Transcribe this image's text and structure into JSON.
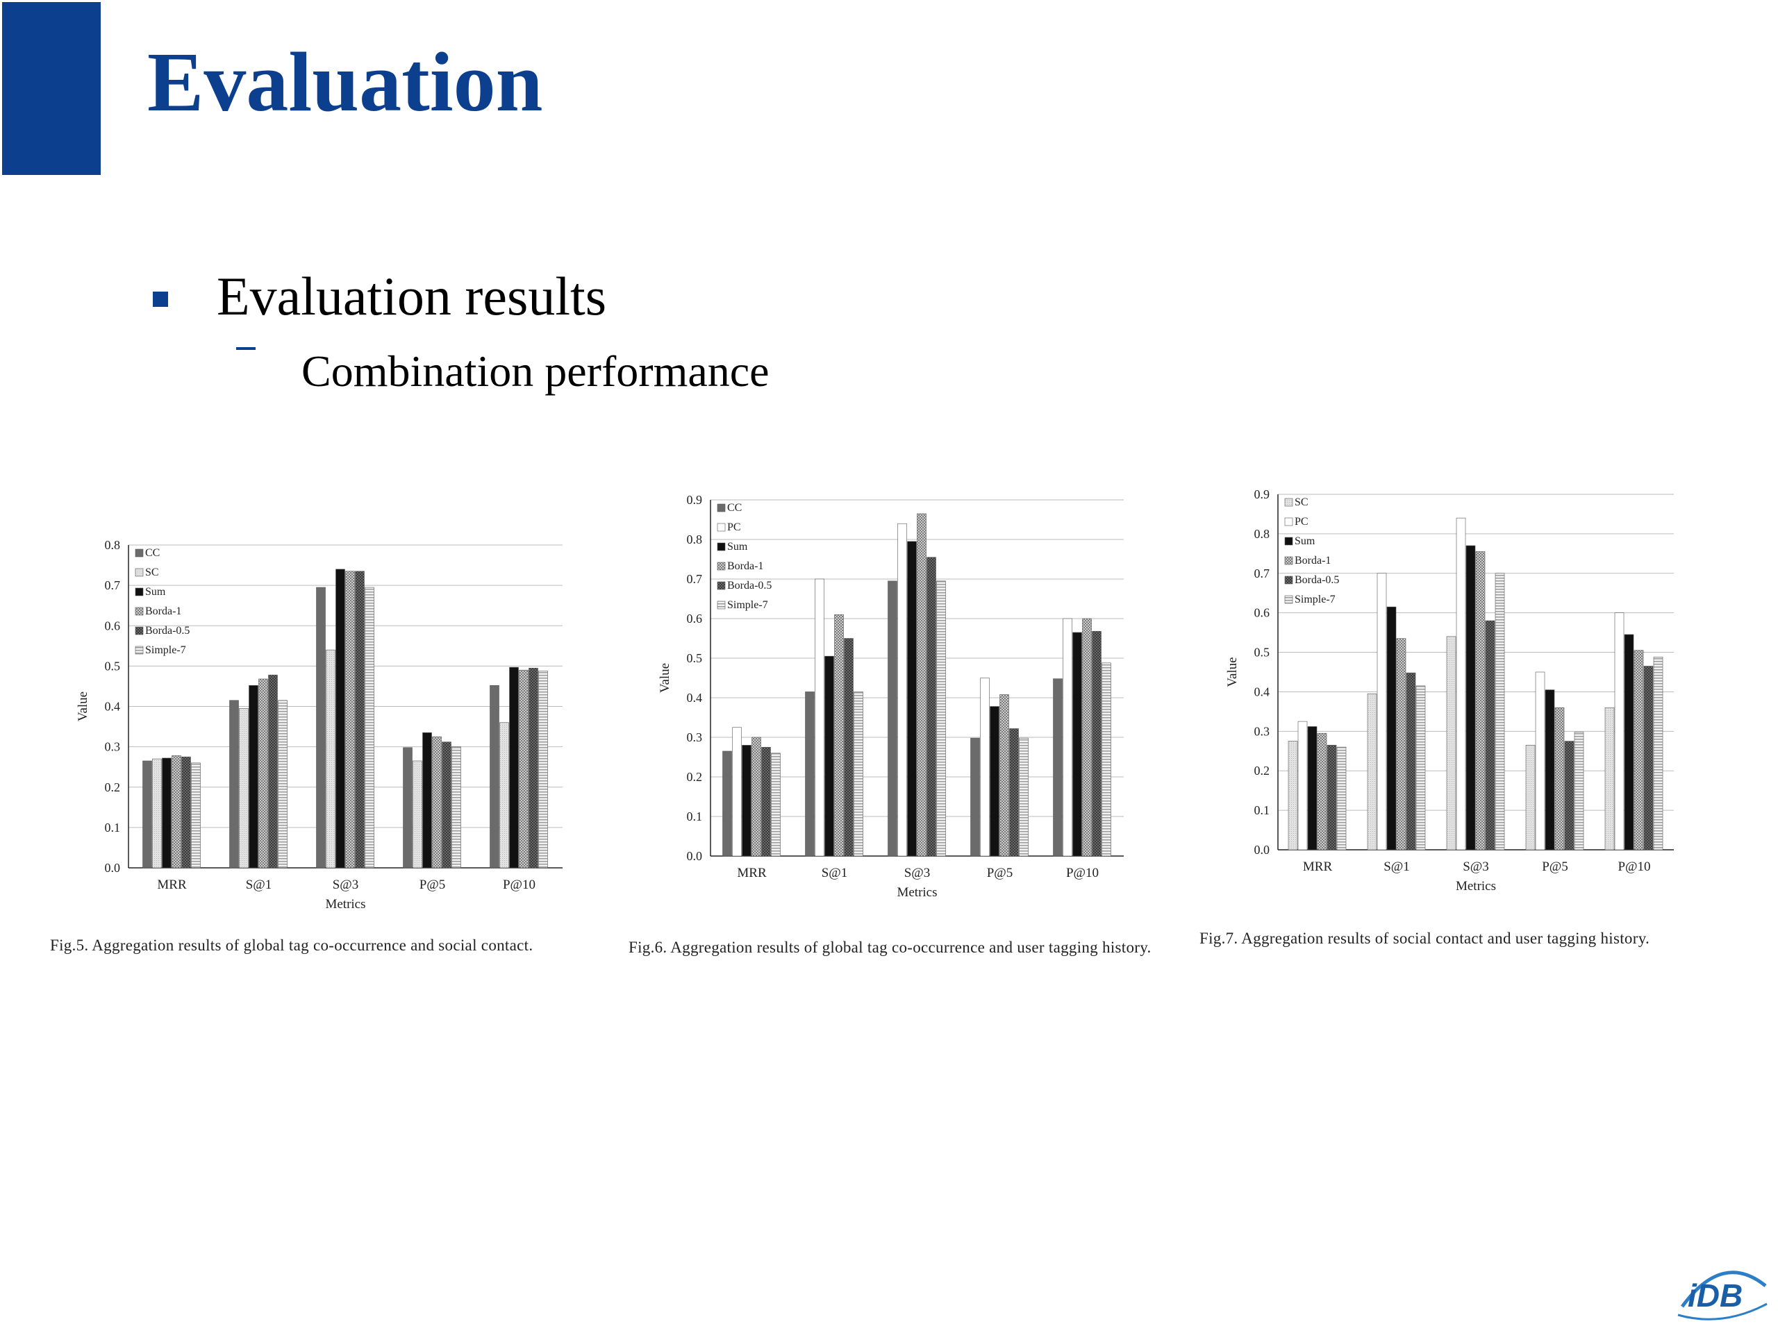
{
  "slide": {
    "title": "Evaluation",
    "bullet": "Evaluation results",
    "subbullet": "Combination performance",
    "logo_text": "iDB"
  },
  "colors": {
    "accent": "#0d3f8f"
  },
  "chart_data": [
    {
      "type": "bar",
      "xlabel": "Metrics",
      "ylabel": "Value",
      "ylim": [
        0,
        0.8
      ],
      "yticks": [
        "0.0",
        "0.1",
        "0.2",
        "0.3",
        "0.4",
        "0.5",
        "0.6",
        "0.7",
        "0.8"
      ],
      "categories": [
        "MRR",
        "S@1",
        "S@3",
        "P@5",
        "P@10"
      ],
      "legend_position": "top-left",
      "grid": true,
      "series": [
        {
          "name": "CC",
          "pattern": "dark",
          "values": [
            0.265,
            0.415,
            0.695,
            0.298,
            0.452
          ]
        },
        {
          "name": "SC",
          "pattern": "light",
          "values": [
            0.27,
            0.395,
            0.54,
            0.265,
            0.36
          ]
        },
        {
          "name": "Sum",
          "pattern": "black",
          "values": [
            0.272,
            0.452,
            0.74,
            0.335,
            0.497
          ]
        },
        {
          "name": "Borda-1",
          "pattern": "check",
          "values": [
            0.278,
            0.468,
            0.735,
            0.325,
            0.49
          ]
        },
        {
          "name": "Borda-0.5",
          "pattern": "darkcheck",
          "values": [
            0.275,
            0.478,
            0.735,
            0.312,
            0.495
          ]
        },
        {
          "name": "Simple-7",
          "pattern": "lines",
          "values": [
            0.26,
            0.415,
            0.695,
            0.3,
            0.488
          ]
        }
      ],
      "caption": "Fig.5.  Aggregation results of global tag co-occurrence and social contact."
    },
    {
      "type": "bar",
      "xlabel": "Metrics",
      "ylabel": "Value",
      "ylim": [
        0,
        0.9
      ],
      "yticks": [
        "0.0",
        "0.1",
        "0.2",
        "0.3",
        "0.4",
        "0.5",
        "0.6",
        "0.7",
        "0.8",
        "0.9"
      ],
      "categories": [
        "MRR",
        "S@1",
        "S@3",
        "P@5",
        "P@10"
      ],
      "legend_position": "top-left",
      "grid": true,
      "series": [
        {
          "name": "CC",
          "pattern": "dark",
          "values": [
            0.265,
            0.415,
            0.695,
            0.298,
            0.448
          ]
        },
        {
          "name": "PC",
          "pattern": "white",
          "values": [
            0.325,
            0.7,
            0.84,
            0.45,
            0.6
          ]
        },
        {
          "name": "Sum",
          "pattern": "black",
          "values": [
            0.28,
            0.505,
            0.795,
            0.378,
            0.565
          ]
        },
        {
          "name": "Borda-1",
          "pattern": "check",
          "values": [
            0.3,
            0.61,
            0.865,
            0.408,
            0.6
          ]
        },
        {
          "name": "Borda-0.5",
          "pattern": "darkcheck",
          "values": [
            0.275,
            0.55,
            0.755,
            0.322,
            0.568
          ]
        },
        {
          "name": "Simple-7",
          "pattern": "lines",
          "values": [
            0.26,
            0.415,
            0.695,
            0.298,
            0.488
          ]
        }
      ],
      "caption": "Fig.6.  Aggregation results of global tag co-occurrence and user tagging history."
    },
    {
      "type": "bar",
      "xlabel": "Metrics",
      "ylabel": "Value",
      "ylim": [
        0,
        0.9
      ],
      "yticks": [
        "0.0",
        "0.1",
        "0.2",
        "0.3",
        "0.4",
        "0.5",
        "0.6",
        "0.7",
        "0.8",
        "0.9"
      ],
      "categories": [
        "MRR",
        "S@1",
        "S@3",
        "P@5",
        "P@10"
      ],
      "legend_position": "top-left",
      "grid": true,
      "series": [
        {
          "name": "SC",
          "pattern": "light",
          "values": [
            0.275,
            0.395,
            0.54,
            0.265,
            0.36
          ]
        },
        {
          "name": "PC",
          "pattern": "white",
          "values": [
            0.325,
            0.7,
            0.84,
            0.45,
            0.6
          ]
        },
        {
          "name": "Sum",
          "pattern": "black",
          "values": [
            0.312,
            0.615,
            0.77,
            0.405,
            0.545
          ]
        },
        {
          "name": "Borda-1",
          "pattern": "check",
          "values": [
            0.295,
            0.535,
            0.755,
            0.36,
            0.505
          ]
        },
        {
          "name": "Borda-0.5",
          "pattern": "darkcheck",
          "values": [
            0.265,
            0.448,
            0.58,
            0.275,
            0.465
          ]
        },
        {
          "name": "Simple-7",
          "pattern": "lines",
          "values": [
            0.26,
            0.415,
            0.7,
            0.298,
            0.488
          ]
        }
      ],
      "caption": "Fig.7.  Aggregation results of social contact and user tagging history."
    }
  ]
}
